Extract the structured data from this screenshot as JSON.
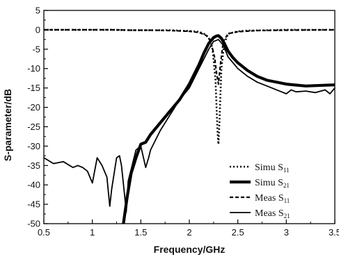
{
  "chart_data": {
    "type": "line",
    "title": "",
    "xlabel": "Frequency/GHz",
    "ylabel": "S-parameter/dB",
    "xlim": [
      0.5,
      3.5
    ],
    "ylim": [
      -50,
      5
    ],
    "xticks": [
      0.5,
      1,
      1.5,
      2,
      2.5,
      3,
      3.5
    ],
    "xtick_labels": [
      "0.5",
      "1",
      "1.5",
      "2",
      "2.5",
      "3",
      "3.5"
    ],
    "yticks": [
      5,
      0,
      -5,
      -10,
      -15,
      -20,
      -25,
      -30,
      -35,
      -40,
      -45,
      -50
    ],
    "ytick_labels": [
      "5",
      "0",
      "-5",
      "-10",
      "-15",
      "-20",
      "-25",
      "-30",
      "-35",
      "-40",
      "-45",
      "-50"
    ],
    "grid": false,
    "legend_position": "bottom-right",
    "series": [
      {
        "name": "Simu S11",
        "legend_main": "Simu S",
        "legend_sub": "11",
        "style": "dotted",
        "width": 2.6,
        "color": "#000000",
        "x": [
          0.5,
          0.8,
          1.0,
          1.2,
          1.4,
          1.6,
          1.8,
          2.0,
          2.1,
          2.15,
          2.2,
          2.24,
          2.27,
          2.29,
          2.3,
          2.31,
          2.33,
          2.36,
          2.4,
          2.5,
          2.6,
          2.8,
          3.0,
          3.2,
          3.5
        ],
        "y": [
          0,
          0,
          0,
          0,
          -0.1,
          -0.1,
          -0.1,
          -0.3,
          -0.5,
          -1.0,
          -2.0,
          -5.0,
          -13.0,
          -26.0,
          -29.5,
          -24.0,
          -10.0,
          -3.5,
          -1.0,
          -0.4,
          -0.2,
          -0.1,
          0,
          0,
          0
        ]
      },
      {
        "name": "Simu S21",
        "legend_main": "Simu S",
        "legend_sub": "21",
        "style": "solid",
        "width": 4.2,
        "color": "#000000",
        "x": [
          1.32,
          1.36,
          1.4,
          1.45,
          1.5,
          1.55,
          1.6,
          1.7,
          1.8,
          1.9,
          2.0,
          2.1,
          2.15,
          2.2,
          2.25,
          2.28,
          2.3,
          2.33,
          2.36,
          2.4,
          2.45,
          2.5,
          2.6,
          2.7,
          2.8,
          3.0,
          3.2,
          3.4,
          3.5
        ],
        "y": [
          -50,
          -43,
          -37,
          -33,
          -29.5,
          -29,
          -27,
          -24,
          -21,
          -18,
          -14,
          -9,
          -6,
          -3.5,
          -2.0,
          -1.6,
          -1.5,
          -2.2,
          -3.5,
          -5.5,
          -7.2,
          -8.5,
          -10.5,
          -12,
          -13,
          -14,
          -14.5,
          -14.3,
          -14.2
        ]
      },
      {
        "name": "Meas S11",
        "legend_main": "Meas S",
        "legend_sub": "11",
        "style": "dashed",
        "width": 2.2,
        "color": "#000000",
        "x": [
          0.5,
          0.8,
          1.0,
          1.2,
          1.4,
          1.6,
          1.8,
          2.0,
          2.1,
          2.18,
          2.22,
          2.26,
          2.28,
          2.3,
          2.32,
          2.35,
          2.4,
          2.5,
          2.7,
          3.0,
          3.5
        ],
        "y": [
          0,
          0,
          0,
          0,
          -0.1,
          -0.1,
          -0.2,
          -0.4,
          -0.7,
          -1.5,
          -3.0,
          -7.0,
          -11.0,
          -14.0,
          -9.0,
          -3.0,
          -1.0,
          -0.5,
          -0.2,
          -0.1,
          0
        ]
      },
      {
        "name": "Meas S21",
        "legend_main": "Meas S",
        "legend_sub": "21",
        "style": "solid",
        "width": 1.8,
        "color": "#000000",
        "x": [
          0.5,
          0.6,
          0.7,
          0.8,
          0.85,
          0.9,
          0.95,
          1.0,
          1.05,
          1.1,
          1.15,
          1.18,
          1.2,
          1.25,
          1.28,
          1.3,
          1.33,
          1.35,
          1.37,
          1.38,
          1.4,
          1.45,
          1.5,
          1.55,
          1.58,
          1.6,
          1.7,
          1.8,
          1.9,
          2.0,
          2.1,
          2.2,
          2.25,
          2.3,
          2.35,
          2.4,
          2.5,
          2.6,
          2.7,
          2.8,
          2.9,
          2.95,
          3.0,
          3.05,
          3.1,
          3.2,
          3.3,
          3.4,
          3.45,
          3.5
        ],
        "y": [
          -33,
          -34.5,
          -34,
          -35.5,
          -35,
          -35.5,
          -36.5,
          -39.5,
          -33,
          -35,
          -38,
          -45.5,
          -41,
          -33,
          -32.5,
          -35,
          -42,
          -47,
          -39,
          -38,
          -36,
          -31,
          -30,
          -35.5,
          -33,
          -31,
          -26,
          -22,
          -18,
          -15,
          -10,
          -5,
          -3,
          -2.5,
          -4,
          -7,
          -10,
          -12,
          -13.5,
          -14.5,
          -15.5,
          -16,
          -16.5,
          -15.5,
          -16,
          -15.8,
          -16.2,
          -15.5,
          -16.5,
          -15
        ]
      }
    ]
  }
}
